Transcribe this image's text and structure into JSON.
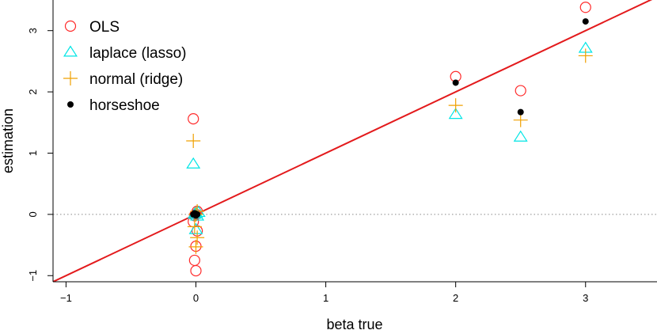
{
  "chart_data": {
    "type": "scatter",
    "title": "",
    "xlabel": "beta true",
    "ylabel": "estimation",
    "xlim": [
      -1.1,
      3.55
    ],
    "ylim": [
      -1.1,
      3.5
    ],
    "x_ticks": [
      -1,
      0,
      1,
      2,
      3
    ],
    "y_ticks": [
      -1,
      0,
      1,
      2,
      3
    ],
    "reference_line": {
      "type": "identity",
      "intercept": 0,
      "slope": 1,
      "color": "#e31a1c"
    },
    "zero_line": {
      "y": 0,
      "style": "dotted",
      "color": "#888888"
    },
    "legend_position": "top-left",
    "series": [
      {
        "name": "OLS",
        "marker": "circle",
        "color": "#ff2a2a",
        "points": [
          [
            -0.02,
            1.56
          ],
          [
            2.0,
            2.25
          ],
          [
            2.5,
            2.02
          ],
          [
            3.0,
            3.38
          ],
          [
            0.0,
            -0.92
          ],
          [
            -0.01,
            -0.75
          ],
          [
            0.0,
            -0.52
          ],
          [
            0.01,
            -0.27
          ],
          [
            -0.02,
            -0.12
          ],
          [
            0.0,
            0.0
          ],
          [
            0.01,
            0.05
          ],
          [
            -0.01,
            -0.02
          ]
        ]
      },
      {
        "name": "laplace (lasso)",
        "marker": "triangle",
        "color": "#00e5e5",
        "points": [
          [
            -0.02,
            0.82
          ],
          [
            2.0,
            1.63
          ],
          [
            2.5,
            1.26
          ],
          [
            3.0,
            2.71
          ],
          [
            0.0,
            0.02
          ],
          [
            0.01,
            -0.03
          ],
          [
            -0.01,
            0.0
          ],
          [
            0.0,
            -0.25
          ],
          [
            0.02,
            0.03
          ]
        ]
      },
      {
        "name": "normal (ridge)",
        "marker": "plus",
        "color": "#f0a000",
        "points": [
          [
            -0.02,
            1.2
          ],
          [
            2.0,
            1.78
          ],
          [
            2.5,
            1.54
          ],
          [
            3.0,
            2.59
          ],
          [
            0.0,
            -0.53
          ],
          [
            0.01,
            -0.38
          ],
          [
            -0.01,
            -0.2
          ],
          [
            0.0,
            0.0
          ],
          [
            0.01,
            0.05
          ]
        ]
      },
      {
        "name": "horseshoe",
        "marker": "dot",
        "color": "#000000",
        "points": [
          [
            -0.01,
            0.02
          ],
          [
            2.0,
            2.15
          ],
          [
            2.5,
            1.67
          ],
          [
            3.0,
            3.15
          ],
          [
            0.0,
            -0.02
          ],
          [
            0.01,
            0.0
          ],
          [
            -0.02,
            0.0
          ],
          [
            0.0,
            0.01
          ]
        ]
      }
    ]
  }
}
